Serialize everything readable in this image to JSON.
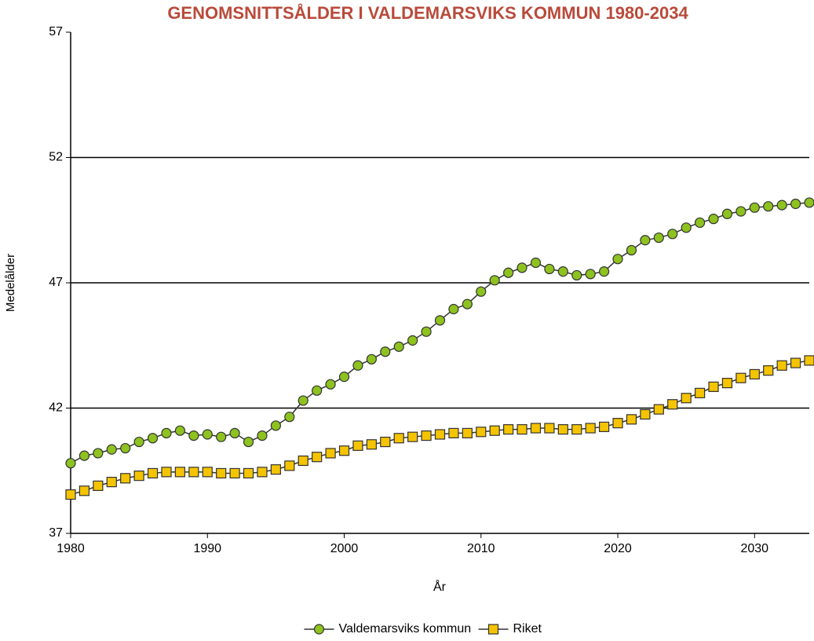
{
  "chart_data": {
    "type": "line",
    "title": "GENOMSNITTSÅLDER I VALDEMARSVIKS KOMMUN 1980-2034",
    "x_label": "År",
    "y_label": "Medelålder",
    "x": [
      1980,
      1981,
      1982,
      1983,
      1984,
      1985,
      1986,
      1987,
      1988,
      1989,
      1990,
      1991,
      1992,
      1993,
      1994,
      1995,
      1996,
      1997,
      1998,
      1999,
      2000,
      2001,
      2002,
      2003,
      2004,
      2005,
      2006,
      2007,
      2008,
      2009,
      2010,
      2011,
      2012,
      2013,
      2014,
      2015,
      2016,
      2017,
      2018,
      2019,
      2020,
      2021,
      2022,
      2023,
      2024,
      2025,
      2026,
      2027,
      2028,
      2029,
      2030,
      2031,
      2032,
      2033,
      2034
    ],
    "series": [
      {
        "name": "Valdemarsviks kommun",
        "color": "#8dc21f",
        "marker": "circle",
        "values": [
          39.8,
          40.1,
          40.2,
          40.35,
          40.4,
          40.65,
          40.8,
          41.0,
          41.1,
          40.9,
          40.95,
          40.85,
          41.0,
          40.65,
          40.9,
          41.3,
          41.65,
          42.3,
          42.7,
          42.95,
          43.25,
          43.7,
          43.95,
          44.25,
          44.45,
          44.7,
          45.05,
          45.5,
          45.95,
          46.15,
          46.65,
          47.1,
          47.4,
          47.6,
          47.8,
          47.55,
          47.45,
          47.3,
          47.35,
          47.45,
          47.95,
          48.3,
          48.7,
          48.8,
          48.95,
          49.2,
          49.4,
          49.55,
          49.75,
          49.85,
          50.0,
          50.05,
          50.1,
          50.15,
          50.2
        ]
      },
      {
        "name": "Riket",
        "color": "#f5c400",
        "marker": "square",
        "values": [
          38.55,
          38.7,
          38.9,
          39.05,
          39.2,
          39.3,
          39.4,
          39.45,
          39.45,
          39.45,
          39.45,
          39.4,
          39.4,
          39.4,
          39.45,
          39.55,
          39.7,
          39.9,
          40.05,
          40.2,
          40.3,
          40.5,
          40.55,
          40.65,
          40.8,
          40.85,
          40.9,
          40.95,
          41.0,
          41.0,
          41.05,
          41.1,
          41.15,
          41.15,
          41.2,
          41.2,
          41.15,
          41.15,
          41.2,
          41.25,
          41.4,
          41.55,
          41.75,
          41.95,
          42.15,
          42.4,
          42.6,
          42.85,
          43.0,
          43.2,
          43.35,
          43.5,
          43.7,
          43.8,
          43.9
        ]
      }
    ],
    "xlim": [
      1980,
      2034
    ],
    "xticks": [
      1980,
      1990,
      2000,
      2010,
      2020,
      2030
    ],
    "ylim": [
      37,
      57
    ],
    "yticks": [
      37,
      42,
      47,
      52,
      57
    ],
    "grid": true,
    "legend": "bottom"
  }
}
